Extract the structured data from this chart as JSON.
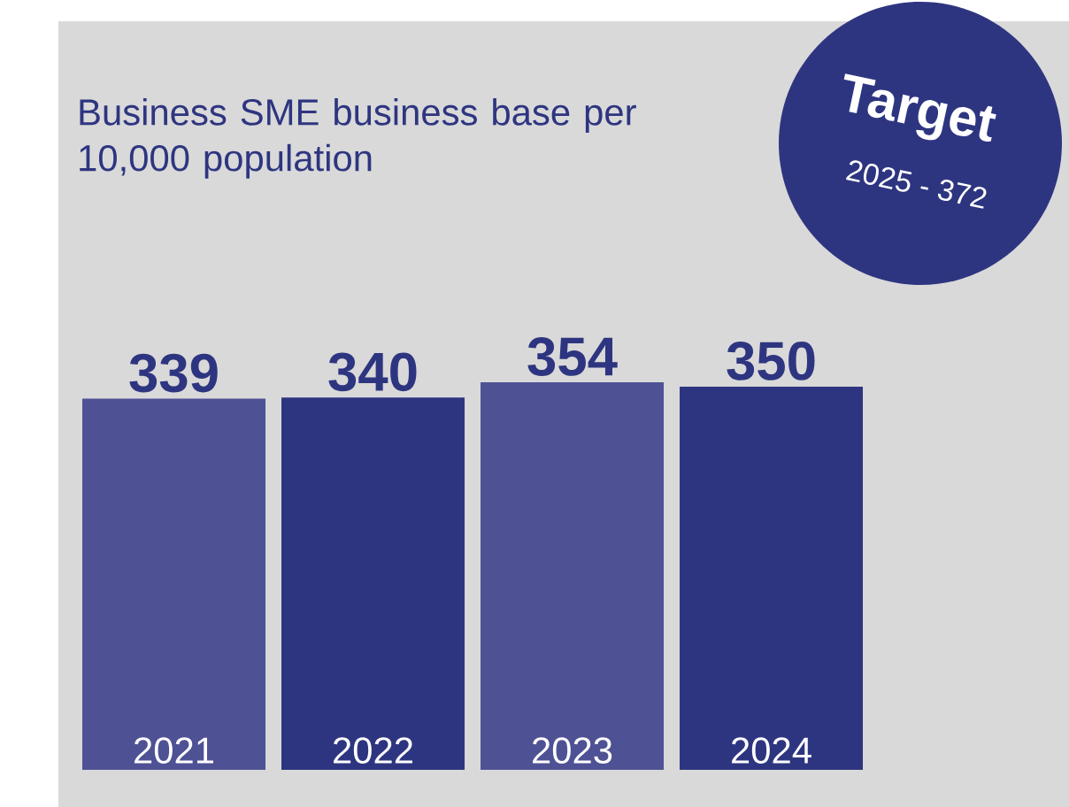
{
  "chart_data": {
    "type": "bar",
    "title": "Business SME business base per 10,000 population",
    "categories": [
      "2021",
      "2022",
      "2023",
      "2024"
    ],
    "values": [
      339,
      340,
      354,
      350
    ],
    "colors": [
      "#4f5195",
      "#2e3580",
      "#4f5195",
      "#2e3580"
    ],
    "data_labels": true,
    "annotations": [
      "Target",
      "2025 - 372"
    ]
  }
}
